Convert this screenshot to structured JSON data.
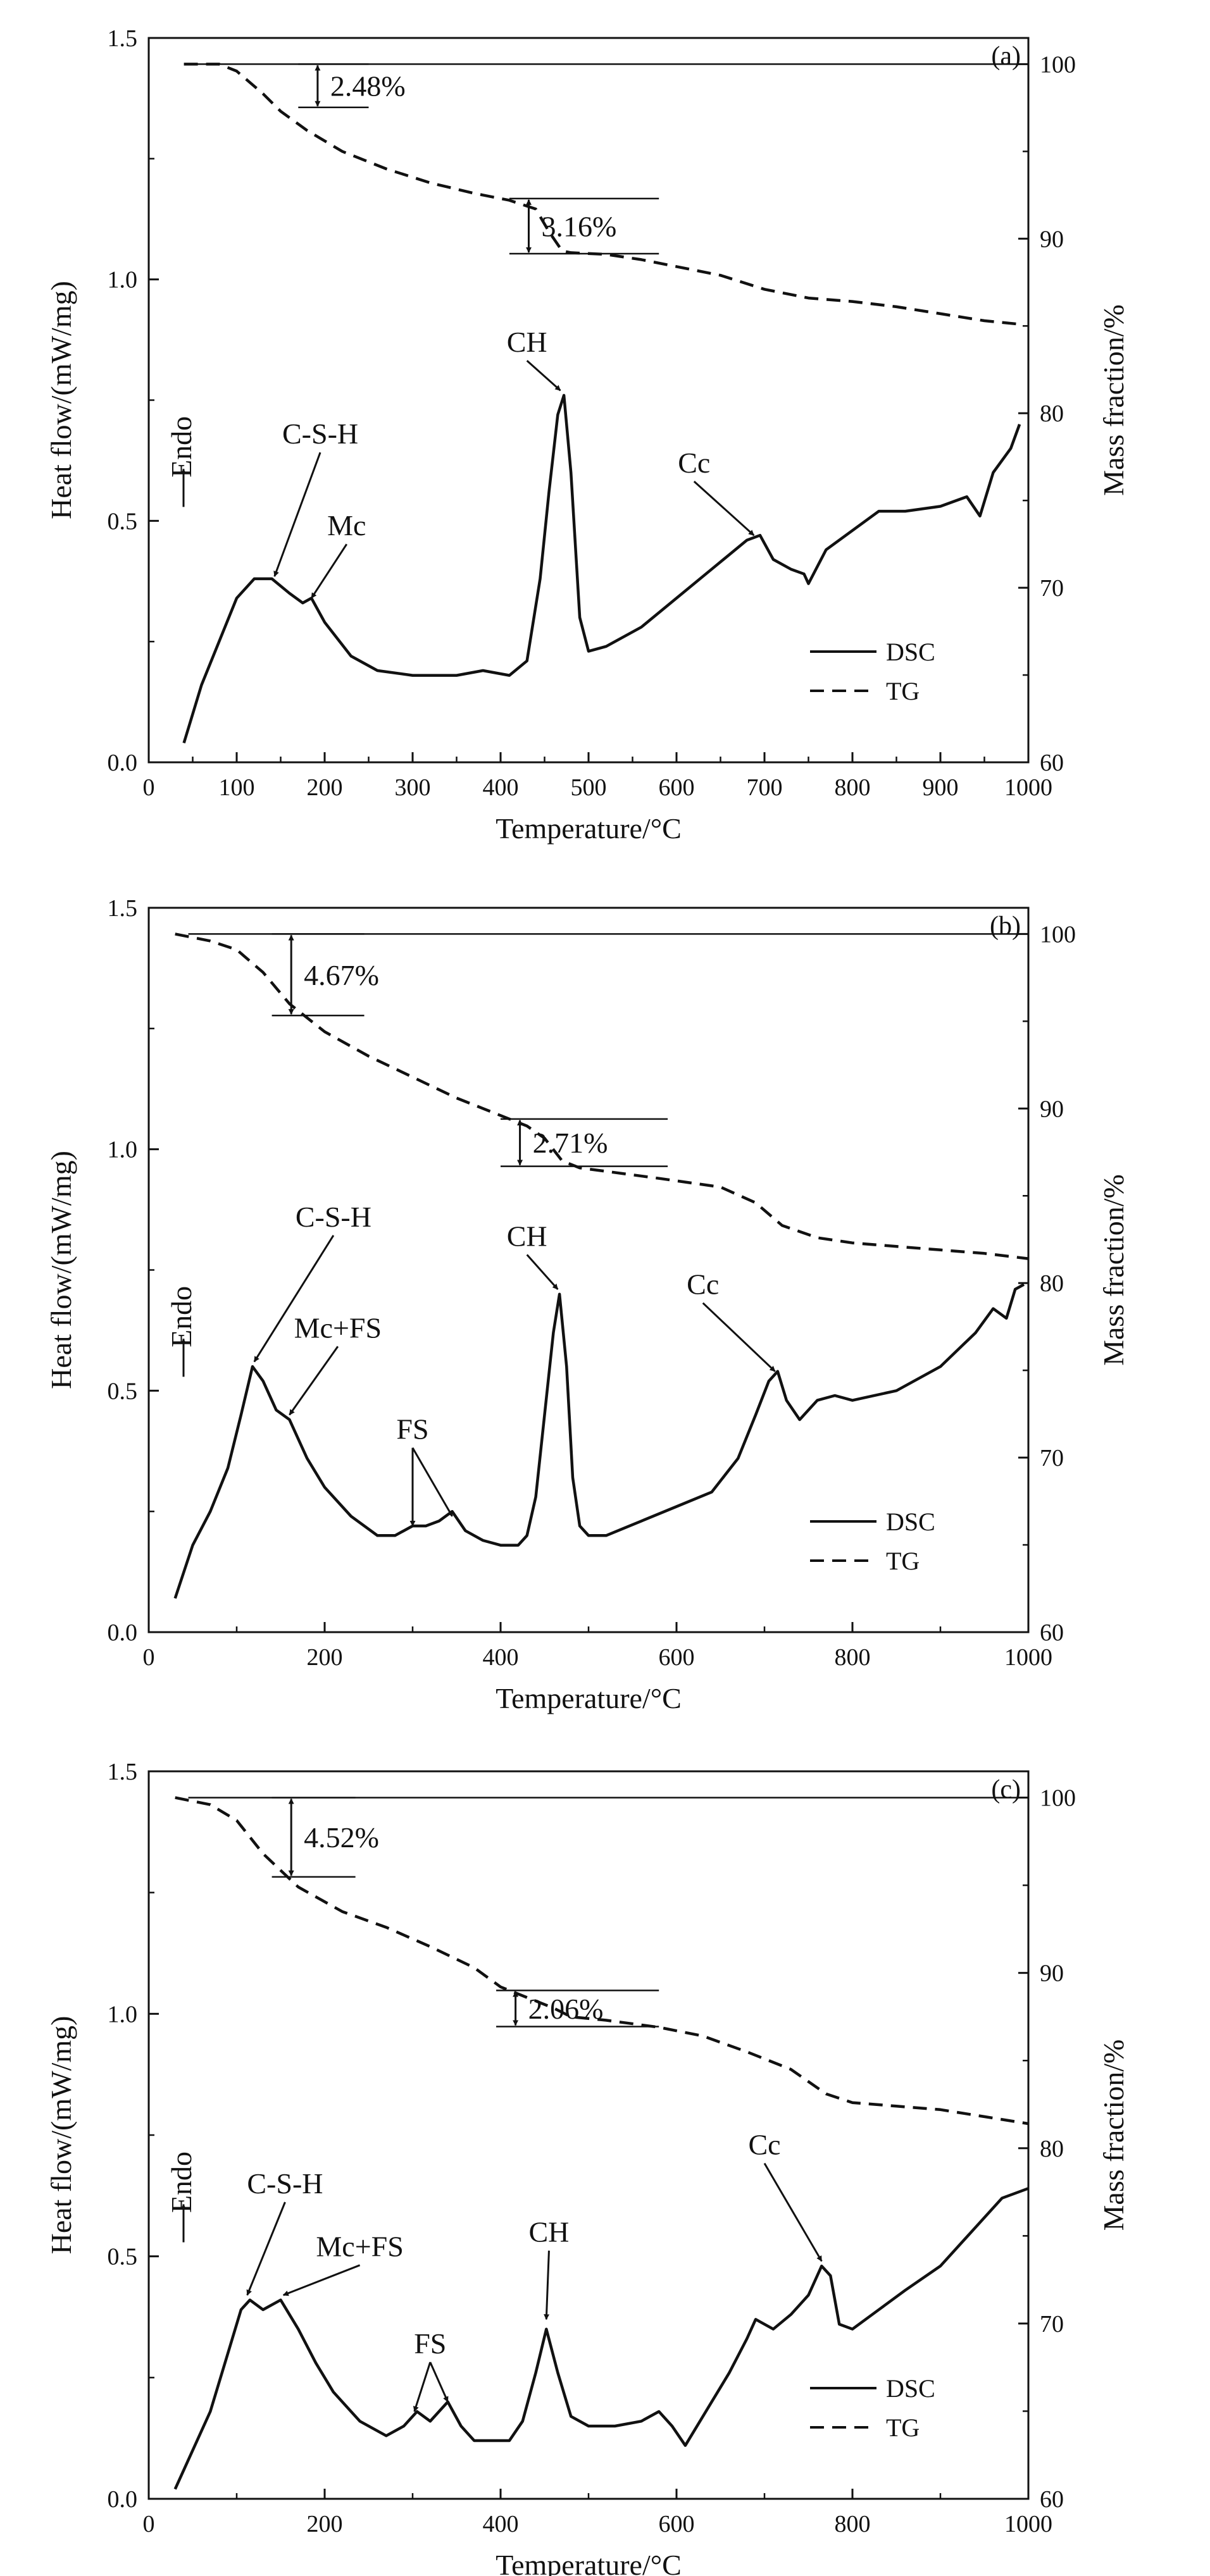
{
  "chart_data": [
    {
      "type": "line",
      "panel_label": "(a)",
      "xlabel": "Temperature/°C",
      "ylabel_left": "Heat flow/(mW/mg)",
      "ylabel_right": "Mass fraction/%",
      "xlim": [
        0,
        1000
      ],
      "xticks": [
        0,
        100,
        200,
        300,
        400,
        500,
        600,
        700,
        800,
        900,
        1000
      ],
      "ylim_left": [
        0.0,
        1.5
      ],
      "yticks_left": [
        "0.0",
        "0.5",
        "1.0",
        "1.5"
      ],
      "ylim_right": [
        60,
        101.5
      ],
      "yticks_right": [
        60,
        70,
        80,
        90,
        100
      ],
      "grid": false,
      "legend_position": "bottom-right",
      "endo_label": "Endo",
      "series": [
        {
          "name": "DSC",
          "axis": "left",
          "style": "solid",
          "x": [
            40,
            60,
            80,
            100,
            120,
            140,
            160,
            175,
            185,
            200,
            230,
            260,
            300,
            350,
            380,
            410,
            430,
            445,
            455,
            465,
            472,
            480,
            490,
            500,
            520,
            560,
            600,
            640,
            680,
            695,
            710,
            730,
            745,
            750,
            770,
            800,
            830,
            860,
            900,
            930,
            945,
            960,
            980,
            990
          ],
          "y": [
            0.04,
            0.16,
            0.25,
            0.34,
            0.38,
            0.38,
            0.35,
            0.33,
            0.34,
            0.29,
            0.22,
            0.19,
            0.18,
            0.18,
            0.19,
            0.18,
            0.21,
            0.38,
            0.56,
            0.72,
            0.76,
            0.6,
            0.3,
            0.23,
            0.24,
            0.28,
            0.34,
            0.4,
            0.46,
            0.47,
            0.42,
            0.4,
            0.39,
            0.37,
            0.44,
            0.48,
            0.52,
            0.52,
            0.53,
            0.55,
            0.51,
            0.6,
            0.65,
            0.7
          ]
        },
        {
          "name": "TG",
          "axis": "right",
          "style": "dashed",
          "x": [
            40,
            80,
            100,
            130,
            150,
            180,
            220,
            270,
            320,
            370,
            410,
            440,
            455,
            470,
            480,
            520,
            560,
            600,
            650,
            700,
            750,
            800,
            850,
            900,
            950,
            990
          ],
          "y": [
            100,
            100,
            99.6,
            98.3,
            97.3,
            96.2,
            95.0,
            94.0,
            93.2,
            92.6,
            92.2,
            91.7,
            90.4,
            89.3,
            89.2,
            89.1,
            88.8,
            88.4,
            87.9,
            87.1,
            86.6,
            86.4,
            86.1,
            85.7,
            85.3,
            85.1
          ]
        }
      ],
      "mass_loss_labels": [
        {
          "text": "2.48%",
          "x_start": 170,
          "x_end": 250,
          "top": 100.0,
          "bottom": 97.52
        },
        {
          "text": "3.16%",
          "x_start": 410,
          "x_end": 580,
          "top": 92.3,
          "bottom": 89.14
        }
      ],
      "annotations": [
        {
          "text": "C-S-H",
          "text_x": 195,
          "text_y": 0.66,
          "point_x": 143,
          "point_y": 0.385
        },
        {
          "text": "Mc",
          "text_x": 225,
          "text_y": 0.47,
          "point_x": 185,
          "point_y": 0.34
        },
        {
          "text": "CH",
          "text_x": 430,
          "text_y": 0.85,
          "point_x": 468,
          "point_y": 0.77
        },
        {
          "text": "Cc",
          "text_x": 620,
          "text_y": 0.6,
          "point_x": 688,
          "point_y": 0.47
        }
      ]
    },
    {
      "type": "line",
      "panel_label": "(b)",
      "xlabel": "Temperature/°C",
      "ylabel_left": "Heat flow/(mW/mg)",
      "ylabel_right": "Mass fraction/%",
      "xlim": [
        0,
        1000
      ],
      "xticks": [
        0,
        200,
        400,
        600,
        800,
        1000
      ],
      "ylim_left": [
        0.0,
        1.5
      ],
      "yticks_left": [
        "0.0",
        "0.5",
        "1.0",
        "1.5"
      ],
      "ylim_right": [
        60,
        101.5
      ],
      "yticks_right": [
        60,
        70,
        80,
        90,
        100
      ],
      "grid": false,
      "legend_position": "bottom-right",
      "endo_label": "Endo",
      "series": [
        {
          "name": "DSC",
          "axis": "left",
          "style": "solid",
          "x": [
            30,
            50,
            70,
            90,
            105,
            118,
            130,
            145,
            160,
            180,
            200,
            230,
            260,
            280,
            300,
            315,
            330,
            345,
            360,
            380,
            400,
            420,
            430,
            440,
            450,
            460,
            467,
            475,
            482,
            490,
            500,
            520,
            560,
            600,
            640,
            670,
            690,
            705,
            715,
            725,
            740,
            760,
            780,
            800,
            850,
            900,
            940,
            960,
            975,
            985,
            995
          ],
          "y": [
            0.07,
            0.18,
            0.25,
            0.34,
            0.45,
            0.55,
            0.52,
            0.46,
            0.44,
            0.36,
            0.3,
            0.24,
            0.2,
            0.2,
            0.22,
            0.22,
            0.23,
            0.25,
            0.21,
            0.19,
            0.18,
            0.18,
            0.2,
            0.28,
            0.45,
            0.62,
            0.7,
            0.55,
            0.32,
            0.22,
            0.2,
            0.2,
            0.23,
            0.26,
            0.29,
            0.36,
            0.45,
            0.52,
            0.54,
            0.48,
            0.44,
            0.48,
            0.49,
            0.48,
            0.5,
            0.55,
            0.62,
            0.67,
            0.65,
            0.71,
            0.72
          ]
        },
        {
          "name": "TG",
          "axis": "right",
          "style": "dashed",
          "x": [
            30,
            70,
            100,
            130,
            160,
            200,
            250,
            300,
            350,
            400,
            430,
            450,
            470,
            490,
            520,
            580,
            650,
            690,
            720,
            760,
            800,
            850,
            900,
            950,
            1000
          ],
          "y": [
            100,
            99.6,
            99.1,
            97.8,
            96.0,
            94.4,
            93.0,
            91.8,
            90.6,
            89.6,
            89.0,
            88.3,
            87.0,
            86.6,
            86.4,
            86.0,
            85.5,
            84.6,
            83.3,
            82.6,
            82.3,
            82.1,
            81.9,
            81.7,
            81.4
          ]
        }
      ],
      "mass_loss_labels": [
        {
          "text": "4.67%",
          "x_start": 140,
          "x_end": 245,
          "top": 100.0,
          "bottom": 95.33
        },
        {
          "text": "2.71%",
          "x_start": 400,
          "x_end": 590,
          "top": 89.4,
          "bottom": 86.69
        }
      ],
      "annotations": [
        {
          "text": "C-S-H",
          "text_x": 210,
          "text_y": 0.84,
          "point_x": 120,
          "point_y": 0.56
        },
        {
          "text": "Mc+FS",
          "text_x": 215,
          "text_y": 0.61,
          "point_x": 160,
          "point_y": 0.45
        },
        {
          "text": "FS",
          "text_x": 300,
          "text_y": 0.4,
          "point_x": 300,
          "point_y": 0.22
        },
        {
          "text": "CH",
          "text_x": 430,
          "text_y": 0.8,
          "point_x": 465,
          "point_y": 0.71
        },
        {
          "text": "Cc",
          "text_x": 630,
          "text_y": 0.7,
          "point_x": 712,
          "point_y": 0.54
        }
      ],
      "extra_arrows": [
        {
          "for": "FS",
          "point_x": 345,
          "point_y": 0.24
        }
      ]
    },
    {
      "type": "line",
      "panel_label": "(c)",
      "xlabel": "Temperature/°C",
      "ylabel_left": "Heat flow/(mW/mg)",
      "ylabel_right": "Mass fraction/%",
      "xlim": [
        0,
        1000
      ],
      "xticks": [
        0,
        200,
        400,
        600,
        800,
        1000
      ],
      "ylim_left": [
        0.0,
        1.5
      ],
      "yticks_left": [
        "0.0",
        "0.5",
        "1.0",
        "1.5"
      ],
      "ylim_right": [
        60,
        101.5
      ],
      "yticks_right": [
        60,
        70,
        80,
        90,
        100
      ],
      "grid": false,
      "legend_position": "bottom-right",
      "endo_label": "Endo",
      "series": [
        {
          "name": "DSC",
          "axis": "left",
          "style": "solid",
          "x": [
            30,
            50,
            70,
            90,
            105,
            115,
            130,
            150,
            170,
            190,
            210,
            240,
            270,
            290,
            305,
            320,
            340,
            355,
            370,
            390,
            410,
            425,
            440,
            452,
            465,
            480,
            500,
            530,
            560,
            580,
            595,
            610,
            620,
            640,
            660,
            680,
            690,
            710,
            730,
            750,
            765,
            775,
            785,
            800,
            830,
            860,
            900,
            940,
            970,
            1000
          ],
          "y": [
            0.02,
            0.1,
            0.18,
            0.3,
            0.39,
            0.41,
            0.39,
            0.41,
            0.35,
            0.28,
            0.22,
            0.16,
            0.13,
            0.15,
            0.18,
            0.16,
            0.2,
            0.15,
            0.12,
            0.12,
            0.12,
            0.16,
            0.26,
            0.35,
            0.26,
            0.17,
            0.15,
            0.15,
            0.16,
            0.18,
            0.15,
            0.11,
            0.14,
            0.2,
            0.26,
            0.33,
            0.37,
            0.35,
            0.38,
            0.42,
            0.48,
            0.46,
            0.36,
            0.35,
            0.39,
            0.43,
            0.48,
            0.56,
            0.62,
            0.64
          ]
        },
        {
          "name": "TG",
          "axis": "right",
          "style": "dashed",
          "x": [
            30,
            70,
            100,
            130,
            170,
            220,
            270,
            320,
            370,
            400,
            430,
            460,
            480,
            520,
            580,
            630,
            680,
            730,
            770,
            800,
            850,
            900,
            950,
            1000
          ],
          "y": [
            100,
            99.6,
            98.7,
            96.8,
            94.9,
            93.5,
            92.6,
            91.5,
            90.3,
            89.2,
            88.6,
            88.0,
            87.5,
            87.3,
            86.9,
            86.4,
            85.5,
            84.5,
            83.1,
            82.6,
            82.4,
            82.2,
            81.8,
            81.4
          ]
        }
      ],
      "mass_loss_labels": [
        {
          "text": "4.52%",
          "x_start": 140,
          "x_end": 235,
          "top": 100.0,
          "bottom": 95.48
        },
        {
          "text": "2.06%",
          "x_start": 395,
          "x_end": 580,
          "top": 89.0,
          "bottom": 86.94
        }
      ],
      "annotations": [
        {
          "text": "C-S-H",
          "text_x": 155,
          "text_y": 0.63,
          "point_x": 112,
          "point_y": 0.42
        },
        {
          "text": "Mc+FS",
          "text_x": 240,
          "text_y": 0.5,
          "point_x": 153,
          "point_y": 0.42
        },
        {
          "text": "FS",
          "text_x": 320,
          "text_y": 0.3,
          "point_x": 302,
          "point_y": 0.18
        },
        {
          "text": "CH",
          "text_x": 455,
          "text_y": 0.53,
          "point_x": 452,
          "point_y": 0.37
        },
        {
          "text": "Cc",
          "text_x": 700,
          "text_y": 0.71,
          "point_x": 765,
          "point_y": 0.49
        }
      ],
      "extra_arrows": [
        {
          "for": "FS",
          "point_x": 340,
          "point_y": 0.2
        }
      ]
    }
  ]
}
